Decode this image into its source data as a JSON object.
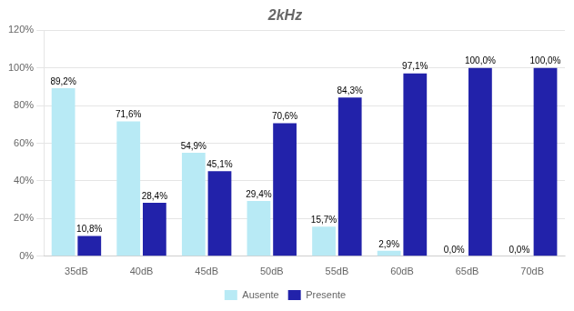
{
  "chart_data": {
    "type": "bar",
    "title": "2kHz",
    "categories": [
      "35dB",
      "40dB",
      "45dB",
      "50dB",
      "55dB",
      "60dB",
      "65dB",
      "70dB"
    ],
    "series": [
      {
        "name": "Ausente",
        "color": "#b8eaf5",
        "values": [
          89.2,
          71.6,
          54.9,
          29.4,
          15.7,
          2.9,
          0.0,
          0.0
        ],
        "value_labels": [
          "89,2%",
          "71,6%",
          "54,9%",
          "29,4%",
          "15,7%",
          "2,9%",
          "0,0%",
          "0,0%"
        ]
      },
      {
        "name": "Presente",
        "color": "#2222aa",
        "values": [
          10.8,
          28.4,
          45.1,
          70.6,
          84.3,
          97.1,
          100.0,
          100.0
        ],
        "value_labels": [
          "10,8%",
          "28,4%",
          "45,1%",
          "70,6%",
          "84,3%",
          "97,1%",
          "100,0%",
          "100,0%"
        ]
      }
    ],
    "ylim": [
      0,
      120
    ],
    "yticks": [
      {
        "value": 0,
        "label": "0%"
      },
      {
        "value": 20,
        "label": "20%"
      },
      {
        "value": 40,
        "label": "40%"
      },
      {
        "value": 60,
        "label": "60%"
      },
      {
        "value": 80,
        "label": "80%"
      },
      {
        "value": 100,
        "label": "100%"
      },
      {
        "value": 120,
        "label": "120%"
      }
    ],
    "grid": true,
    "legend": "bottom",
    "data_labels": true
  }
}
